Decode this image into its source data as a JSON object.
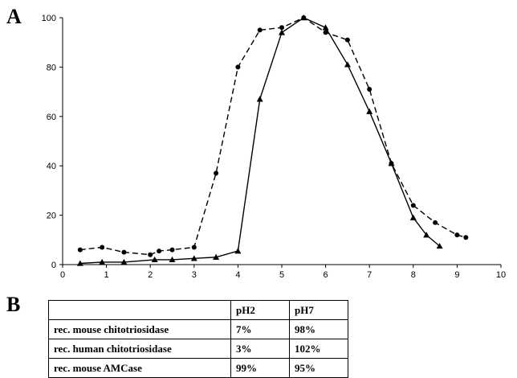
{
  "panel_a_label": "A",
  "panel_b_label": "B",
  "chart_data": {
    "type": "line",
    "title": "",
    "xlabel": "",
    "ylabel": "",
    "xlim": [
      0,
      10
    ],
    "ylim": [
      0,
      100
    ],
    "x_ticks": [
      0,
      1,
      2,
      3,
      4,
      5,
      6,
      7,
      8,
      9,
      10
    ],
    "y_ticks": [
      0,
      20,
      40,
      60,
      80,
      100
    ],
    "grid": false,
    "series": [
      {
        "marker": "circle",
        "line_style": "dashed",
        "color": "#000000",
        "points": [
          [
            0.4,
            6
          ],
          [
            0.9,
            7
          ],
          [
            1.4,
            5
          ],
          [
            2.0,
            4
          ],
          [
            2.2,
            5.5
          ],
          [
            2.5,
            6
          ],
          [
            3.0,
            7
          ],
          [
            3.5,
            37
          ],
          [
            4.0,
            80
          ],
          [
            4.5,
            95
          ],
          [
            5.0,
            96
          ],
          [
            5.5,
            100
          ],
          [
            6.0,
            94
          ],
          [
            6.5,
            91
          ],
          [
            7.0,
            71
          ],
          [
            7.5,
            41
          ],
          [
            8.0,
            24
          ],
          [
            8.5,
            17
          ],
          [
            9.0,
            12
          ],
          [
            9.2,
            11
          ]
        ]
      },
      {
        "marker": "triangle",
        "line_style": "solid",
        "color": "#000000",
        "points": [
          [
            0.4,
            0.5
          ],
          [
            0.9,
            1
          ],
          [
            1.4,
            1
          ],
          [
            2.1,
            2
          ],
          [
            2.5,
            2
          ],
          [
            3.0,
            2.5
          ],
          [
            3.5,
            3
          ],
          [
            4.0,
            5.5
          ],
          [
            4.5,
            67
          ],
          [
            5.0,
            94
          ],
          [
            5.5,
            100
          ],
          [
            6.0,
            96
          ],
          [
            6.5,
            81
          ],
          [
            7.0,
            62
          ],
          [
            7.5,
            41
          ],
          [
            8.0,
            19
          ],
          [
            8.3,
            12
          ],
          [
            8.6,
            7.5
          ]
        ]
      }
    ]
  },
  "table": {
    "header": [
      "",
      "pH2",
      "pH7"
    ],
    "rows": [
      [
        "rec. mouse chitotriosidase",
        "7%",
        "98%"
      ],
      [
        "rec. human chitotriosidase",
        "3%",
        "102%"
      ],
      [
        "rec. mouse AMCase",
        "99%",
        "95%"
      ]
    ]
  }
}
